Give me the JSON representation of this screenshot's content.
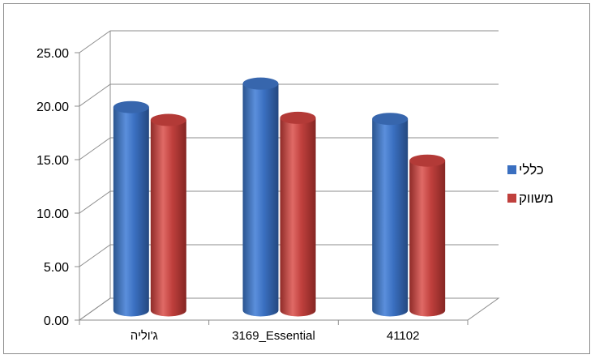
{
  "chart_data": {
    "type": "bar",
    "style": "3d-cylinder",
    "categories": [
      "ג'וליה",
      "3169_Essential",
      "41102"
    ],
    "series": [
      {
        "name": "כללי",
        "values": [
          19.0,
          21.2,
          17.9
        ],
        "color": "#3a6fc0"
      },
      {
        "name": "משווק",
        "values": [
          17.8,
          18.0,
          14.0
        ],
        "color": "#c0403d"
      }
    ],
    "yticks": [
      "0.00",
      "5.00",
      "10.00",
      "15.00",
      "20.00",
      "25.00"
    ],
    "ylim": [
      0,
      25
    ],
    "title": "",
    "xlabel": "",
    "ylabel": "",
    "grid": true,
    "legend": "right"
  }
}
